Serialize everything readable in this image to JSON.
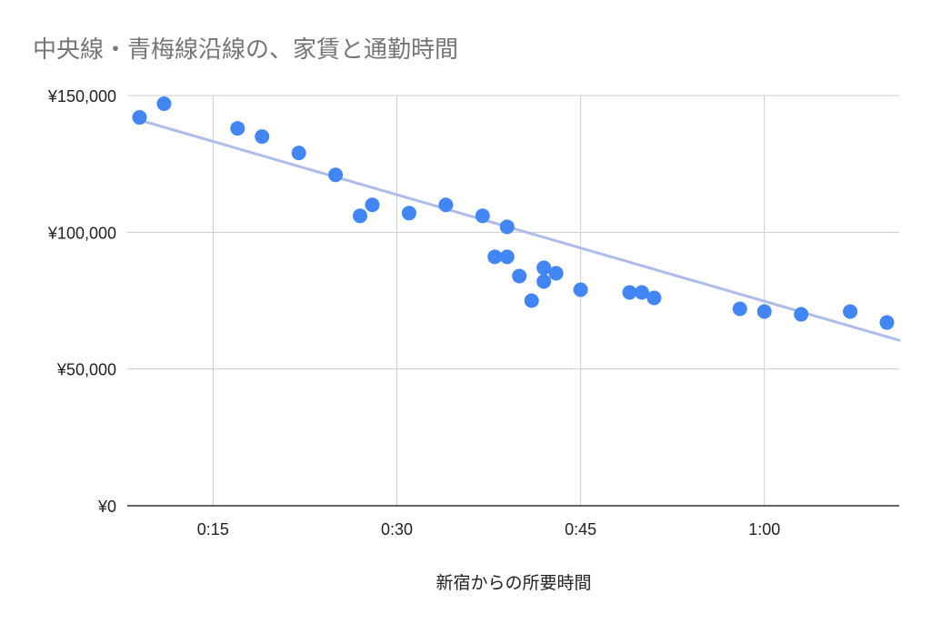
{
  "chart_data": {
    "type": "scatter",
    "title": "中央線・青梅線沿線の、家賃と通勤時間",
    "xlabel": "新宿からの所要時間",
    "ylabel": "",
    "xlim": [
      8,
      71
    ],
    "ylim": [
      0,
      150000
    ],
    "x_ticks": [
      {
        "value": 15,
        "label": "0:15"
      },
      {
        "value": 30,
        "label": "0:30"
      },
      {
        "value": 45,
        "label": "0:45"
      },
      {
        "value": 60,
        "label": "1:00"
      }
    ],
    "y_ticks": [
      {
        "value": 0,
        "label": "¥0"
      },
      {
        "value": 50000,
        "label": "¥50,000"
      },
      {
        "value": 100000,
        "label": "¥100,000"
      },
      {
        "value": 150000,
        "label": "¥150,000"
      }
    ],
    "grid": true,
    "colors": {
      "points": "#4285f4",
      "trendline": "#aebcec",
      "grid": "#cccccc",
      "axis": "#333333"
    },
    "trendline": {
      "x": [
        9,
        71
      ],
      "y": [
        141000,
        60500
      ]
    },
    "points": [
      {
        "x": 9,
        "y": 142000
      },
      {
        "x": 11,
        "y": 147000
      },
      {
        "x": 17,
        "y": 138000
      },
      {
        "x": 19,
        "y": 135000
      },
      {
        "x": 22,
        "y": 129000
      },
      {
        "x": 25,
        "y": 121000
      },
      {
        "x": 27,
        "y": 106000
      },
      {
        "x": 28,
        "y": 110000
      },
      {
        "x": 31,
        "y": 107000
      },
      {
        "x": 34,
        "y": 110000
      },
      {
        "x": 37,
        "y": 106000
      },
      {
        "x": 38,
        "y": 91000
      },
      {
        "x": 39,
        "y": 91000
      },
      {
        "x": 39,
        "y": 102000
      },
      {
        "x": 40,
        "y": 84000
      },
      {
        "x": 41,
        "y": 75000
      },
      {
        "x": 42,
        "y": 87000
      },
      {
        "x": 42,
        "y": 82000
      },
      {
        "x": 43,
        "y": 85000
      },
      {
        "x": 45,
        "y": 79000
      },
      {
        "x": 49,
        "y": 78000
      },
      {
        "x": 50,
        "y": 78000
      },
      {
        "x": 51,
        "y": 76000
      },
      {
        "x": 58,
        "y": 72000
      },
      {
        "x": 60,
        "y": 71000
      },
      {
        "x": 63,
        "y": 70000
      },
      {
        "x": 67,
        "y": 71000
      },
      {
        "x": 70,
        "y": 67000
      }
    ]
  }
}
